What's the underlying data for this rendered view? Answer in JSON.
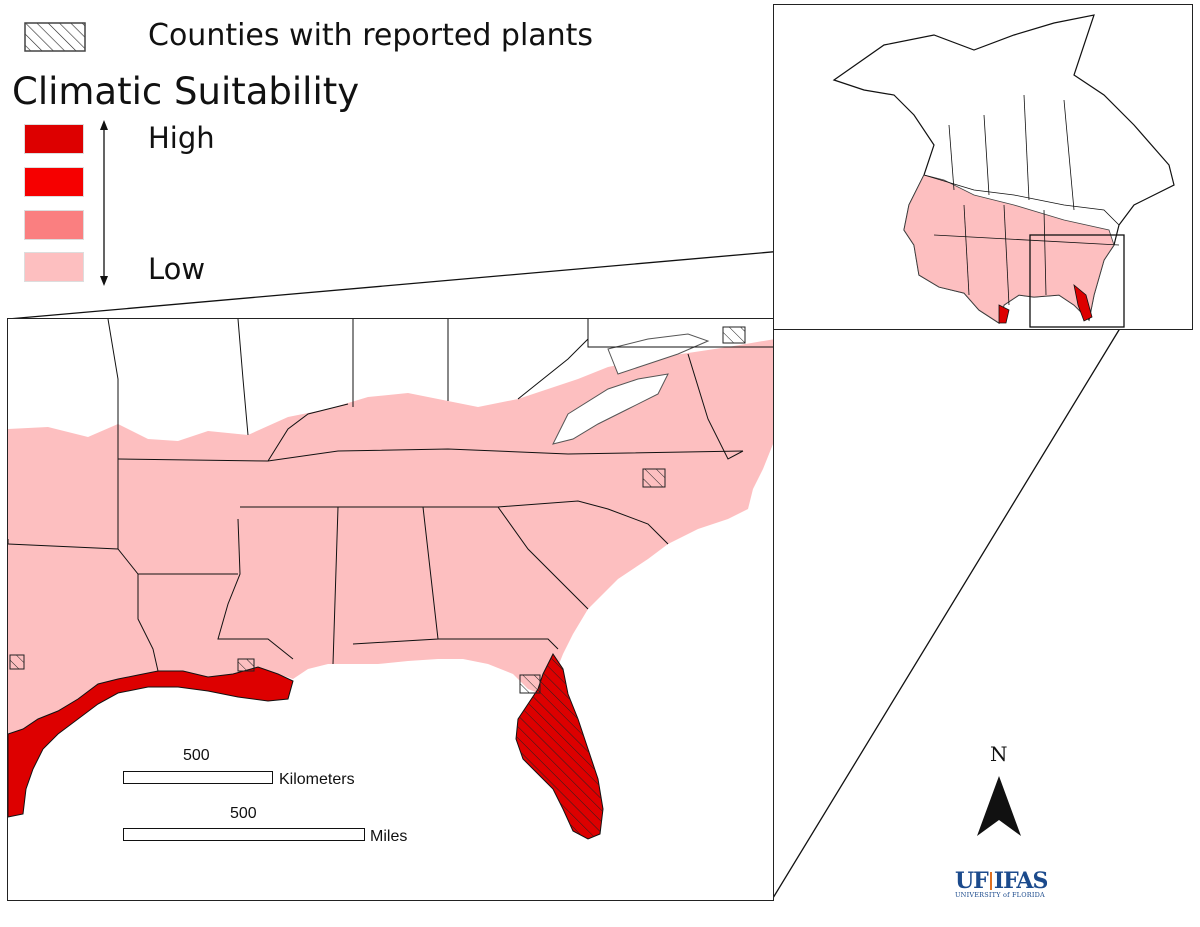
{
  "legend": {
    "counties_label": "Counties with reported plants",
    "title": "Climatic Suitability",
    "high_label": "High",
    "low_label": "Low",
    "classes": [
      {
        "level": "high",
        "color": "#dd0000"
      },
      {
        "level": "mid-high",
        "color": "#f60000"
      },
      {
        "level": "mid-low",
        "color": "#fa7f80"
      },
      {
        "level": "low",
        "color": "#fdbfc0"
      }
    ]
  },
  "scale": {
    "km_value": "500",
    "km_unit": "Kilometers",
    "mi_value": "500",
    "mi_unit": "Miles"
  },
  "north_arrow": {
    "label": "N"
  },
  "logo": {
    "uf": "UF",
    "ifas": "IFAS",
    "sub": "UNIVERSITY of FLORIDA",
    "uf_color": "#1b4a8c",
    "ifas_color": "#1b4a8c"
  },
  "colors": {
    "low_pink": "#fdbfc0",
    "high_red": "#dd0000",
    "outline": "#111111"
  }
}
